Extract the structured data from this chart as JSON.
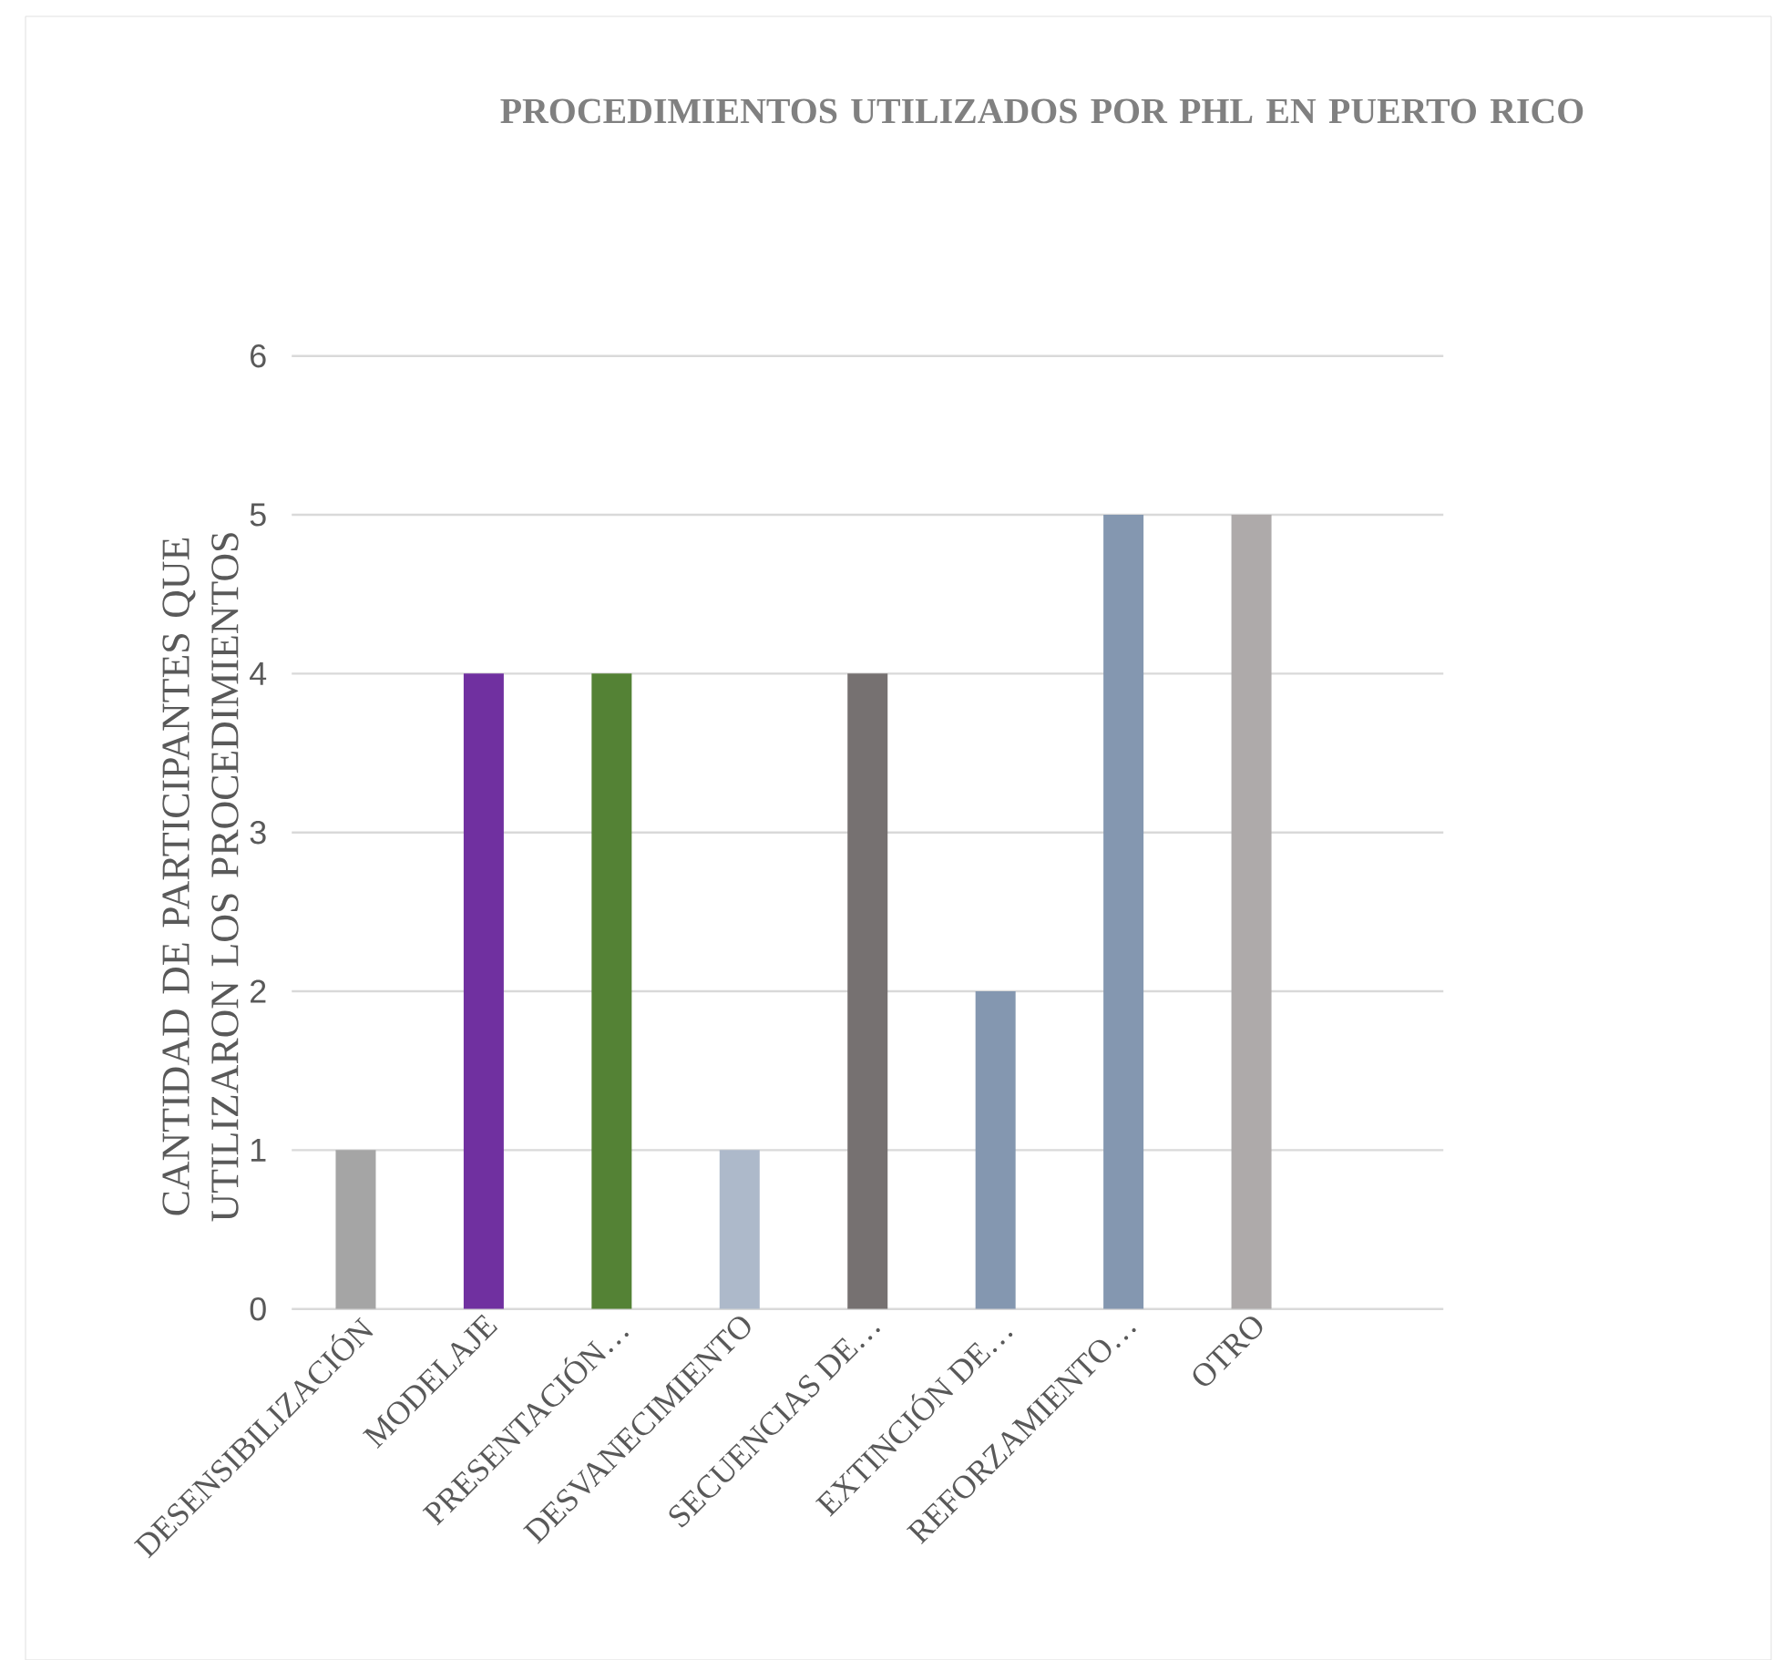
{
  "chart_data": {
    "type": "bar",
    "title": "PROCEDIMIENTOS UTILIZADOS POR PHL EN PUERTO RICO",
    "ylabel": "CANTIDAD DE PARTICIPANTES QUE UTILIZARON LOS PROCEDIMIENTOS",
    "categories": [
      "DESENSIBILIZACIÓN",
      "MODELAJE",
      "PRESENTACIÓN…",
      "DESVANECIMIENTO",
      "SECUENCIAS DE…",
      "EXTINCIÓN DE…",
      "REFORZAMIENTO…",
      "OTRO",
      null
    ],
    "values": [
      1,
      4,
      4,
      1,
      4,
      2,
      5,
      5,
      null
    ],
    "colors": [
      "#a5a5a5",
      "#7030a0",
      "#548235",
      "#adb9ca",
      "#767171",
      "#8497b0",
      "#8497b0",
      "#aeaaaa",
      "#aeaaaa"
    ],
    "ylim": [
      0,
      6
    ],
    "yticks": [
      0,
      1,
      2,
      3,
      4,
      5,
      6
    ],
    "grid": "y"
  }
}
